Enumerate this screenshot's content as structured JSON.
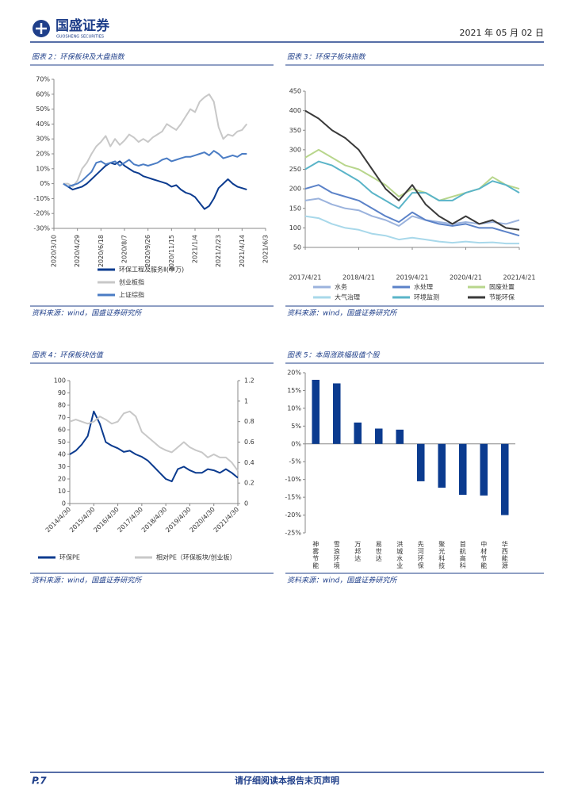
{
  "header": {
    "logo": "国盛证券",
    "logo_en": "GUOSHENG SECURITIES",
    "date": "2021 年 05 月 02 日"
  },
  "figures": [
    {
      "title": "图表 2：环保板块及大盘指数",
      "source": "资料来源：wind，国盛证券研究所",
      "chart_data": {
        "type": "line",
        "categories": [
          "2020/3/10",
          null,
          null,
          null,
          null,
          "2020/4/29",
          null,
          null,
          null,
          null,
          "2020/6/18",
          null,
          null,
          null,
          null,
          "2020/8/7",
          null,
          null,
          null,
          null,
          "2020/9/26",
          null,
          null,
          null,
          null,
          "2020/11/15",
          null,
          null,
          null,
          null,
          "2021/1/4",
          null,
          null,
          null,
          null,
          "2021/2/23",
          null,
          null,
          null,
          null,
          "2021/4/14",
          null,
          null,
          null,
          null,
          "2021/6/3"
        ],
        "ylim": [
          -30,
          70
        ],
        "yticks": [
          {
            "value": -30,
            "label": "-30%"
          },
          {
            "value": -20,
            "label": "-20%"
          },
          {
            "value": -10,
            "label": "-10%"
          },
          {
            "value": 0,
            "label": "0%"
          },
          {
            "value": 10,
            "label": "10%"
          },
          {
            "value": 20,
            "label": "20%"
          },
          {
            "value": 30,
            "label": "30%"
          },
          {
            "value": 40,
            "label": "40%"
          },
          {
            "value": 50,
            "label": "50%"
          },
          {
            "value": 60,
            "label": "60%"
          },
          {
            "value": 70,
            "label": "70%"
          }
        ],
        "legend": "bottom",
        "series": [
          {
            "name": "环保工程及服务Ⅱ(申万)",
            "color": "#0b3b8f",
            "values": [
              null,
              null,
              0,
              -2,
              -4,
              -3,
              -2,
              0,
              3,
              6,
              9,
              12,
              14,
              13,
              15,
              12,
              10,
              8,
              7,
              5,
              4,
              3,
              2,
              1,
              0,
              -2,
              -1,
              -4,
              -6,
              -7,
              -9,
              -13,
              -17,
              -15,
              -10,
              -3,
              0,
              3,
              0,
              -2,
              -3,
              -4,
              null,
              null,
              null,
              null
            ]
          },
          {
            "name": "创业板指",
            "color": "#c8c8c8",
            "values": [
              null,
              null,
              0,
              0,
              -2,
              2,
              10,
              14,
              20,
              25,
              28,
              32,
              25,
              30,
              26,
              29,
              33,
              31,
              28,
              30,
              28,
              31,
              33,
              35,
              40,
              38,
              36,
              40,
              45,
              50,
              48,
              55,
              58,
              60,
              55,
              38,
              30,
              33,
              32,
              35,
              36,
              40,
              null,
              null,
              null,
              null
            ]
          },
          {
            "name": "上证综指",
            "color": "#4a7cc4",
            "values": [
              null,
              null,
              0,
              -2,
              -1,
              0,
              2,
              5,
              8,
              14,
              15,
              13,
              14,
              15,
              12,
              14,
              16,
              13,
              12,
              13,
              12,
              13,
              14,
              16,
              17,
              15,
              16,
              17,
              18,
              18,
              19,
              20,
              21,
              19,
              22,
              20,
              17,
              18,
              19,
              18,
              20,
              20,
              null,
              null,
              null,
              null
            ]
          }
        ]
      }
    },
    {
      "title": "图表 3：环保子板块指数",
      "source": "资料来源：wind，国盛证券研究所",
      "chart_data": {
        "type": "line",
        "categories": [
          "2017/4/21",
          null,
          null,
          null,
          "2018/4/21",
          null,
          null,
          null,
          "2019/4/21",
          null,
          null,
          null,
          "2020/4/21",
          null,
          null,
          null,
          "2021/4/21"
        ],
        "ylim": [
          50,
          450
        ],
        "yticks": [
          50,
          100,
          150,
          200,
          250,
          300,
          350,
          400,
          450
        ],
        "legend": "bottom",
        "series": [
          {
            "name": "水务",
            "color": "#9bb3dd",
            "values": [
              170,
              175,
              160,
              150,
              145,
              130,
              120,
              105,
              130,
              120,
              115,
              110,
              115,
              110,
              115,
              110,
              120
            ]
          },
          {
            "name": "水处理",
            "color": "#5b82c8",
            "values": [
              200,
              210,
              190,
              180,
              170,
              150,
              130,
              115,
              140,
              120,
              110,
              105,
              110,
              100,
              100,
              90,
              80
            ]
          },
          {
            "name": "固废处置",
            "color": "#b8d68c",
            "values": [
              280,
              300,
              280,
              260,
              250,
              230,
              210,
              180,
              200,
              190,
              170,
              180,
              190,
              200,
              230,
              210,
              200
            ]
          },
          {
            "name": "大气治理",
            "color": "#a8d8ea",
            "values": [
              130,
              125,
              110,
              100,
              95,
              85,
              80,
              70,
              75,
              70,
              65,
              62,
              65,
              62,
              63,
              60,
              60
            ]
          },
          {
            "name": "环境监测",
            "color": "#5ab4c8",
            "values": [
              250,
              270,
              260,
              240,
              220,
              190,
              170,
              150,
              190,
              190,
              170,
              170,
              190,
              200,
              220,
              210,
              190
            ]
          },
          {
            "name": "节能环保",
            "color": "#3a3a3a",
            "values": [
              400,
              380,
              350,
              330,
              300,
              250,
              200,
              170,
              210,
              160,
              130,
              110,
              130,
              110,
              120,
              100,
              95
            ]
          }
        ]
      }
    },
    {
      "title": "图表 4：环保板块估值",
      "source": "资料来源：wind，国盛证券研究所",
      "chart_data": {
        "type": "line",
        "categories": [
          "2014/4/30",
          null,
          null,
          null,
          "2015/4/30",
          null,
          null,
          null,
          "2016/4/30",
          null,
          null,
          null,
          "2017/4/30",
          null,
          null,
          null,
          "2018/4/30",
          null,
          null,
          null,
          "2019/4/30",
          null,
          null,
          null,
          "2020/4/30",
          null,
          null,
          null,
          "2021/4/30"
        ],
        "ylim": [
          0,
          100
        ],
        "yticks": [
          0,
          10,
          20,
          30,
          40,
          50,
          60,
          70,
          80,
          90,
          100
        ],
        "y2lim": [
          0,
          1.2
        ],
        "y2ticks": [
          0,
          0.2,
          0.4,
          0.6,
          0.8,
          1,
          1.2
        ],
        "legend": "bottom",
        "series": [
          {
            "name": "环保PE",
            "color": "#0b3b8f",
            "values": [
              40,
              43,
              48,
              55,
              75,
              65,
              50,
              47,
              45,
              42,
              43,
              40,
              38,
              35,
              30,
              25,
              20,
              18,
              28,
              30,
              27,
              25,
              25,
              28,
              27,
              25,
              28,
              25,
              21
            ]
          },
          {
            "name": "相对PE（环保板块/创业板）",
            "color": "#c8c8c8",
            "axis": "y2",
            "values": [
              0.8,
              0.82,
              0.8,
              0.78,
              0.8,
              0.85,
              0.82,
              0.78,
              0.8,
              0.88,
              0.9,
              0.85,
              0.7,
              0.65,
              0.6,
              0.55,
              0.52,
              0.5,
              0.55,
              0.6,
              0.55,
              0.52,
              0.5,
              0.45,
              0.48,
              0.45,
              0.45,
              0.4,
              0.32
            ]
          }
        ]
      }
    },
    {
      "title": "图表 5：本周涨跌幅极值个股",
      "source": "资料来源：wind，国盛证券研究所",
      "chart_data": {
        "type": "bar",
        "categories": [
          "神雾节能",
          "雪浪环境",
          "万邦达",
          "易世达",
          "洪城水业",
          "先河环保",
          "聚光科技",
          "首航高科",
          "中材节能",
          "华西能源"
        ],
        "values": [
          18.0,
          17.0,
          6.0,
          4.3,
          4.0,
          -10.5,
          -12.3,
          -14.3,
          -14.5,
          -20.0
        ],
        "color": "#0b3b8f",
        "ylim": [
          -25,
          20
        ],
        "yticks": [
          {
            "value": -25,
            "label": "-25%"
          },
          {
            "value": -20,
            "label": "-20%"
          },
          {
            "value": -15,
            "label": "-15%"
          },
          {
            "value": -10,
            "label": "-10%"
          },
          {
            "value": -5,
            "label": "-5%"
          },
          {
            "value": 0,
            "label": "0%"
          },
          {
            "value": 5,
            "label": "5%"
          },
          {
            "value": 10,
            "label": "10%"
          },
          {
            "value": 15,
            "label": "15%"
          },
          {
            "value": 20,
            "label": "20%"
          }
        ]
      }
    }
  ],
  "footer": {
    "page": "P.7",
    "notice": "请仔细阅读本报告末页声明"
  }
}
